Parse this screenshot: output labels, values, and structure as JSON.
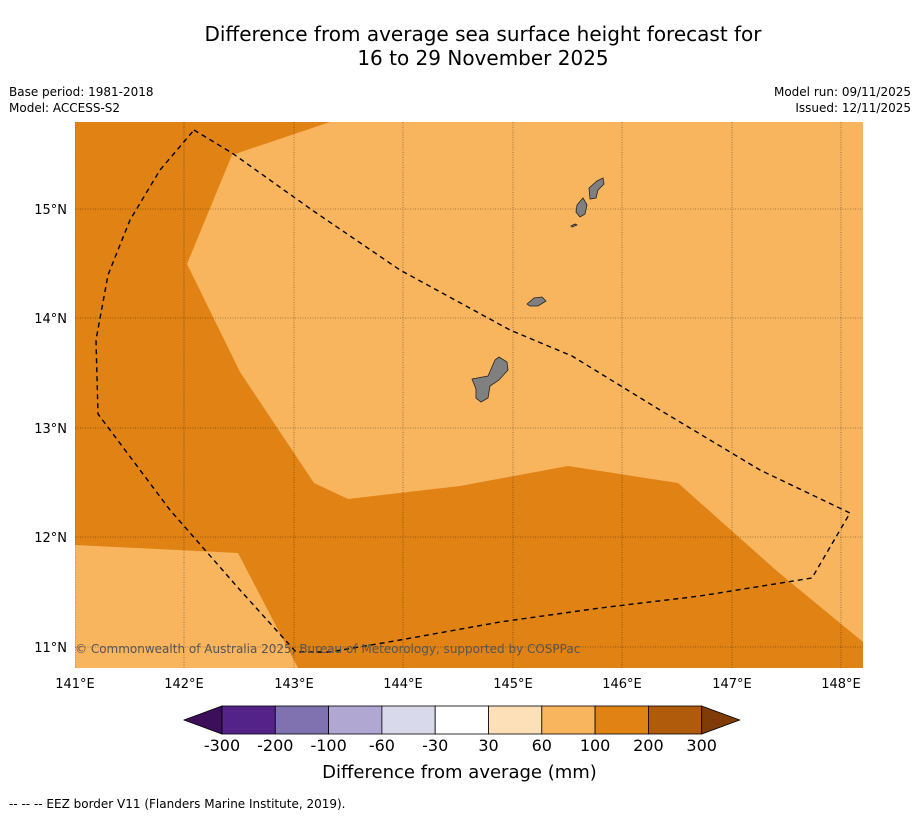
{
  "title_line1": "Difference from average sea surface height forecast for",
  "title_line2": "16 to 29 November 2025",
  "base_period": "Base period: 1981-2018",
  "model": "Model: ACCESS-S2",
  "model_run": "Model run: 09/11/2025",
  "issued": "Issued: 12/11/2025",
  "copyright": "© Commonwealth of Australia 2025, Bureau of Meteorology, supported by COSPPac",
  "lon_labels": [
    "141°E",
    "142°E",
    "143°E",
    "144°E",
    "145°E",
    "146°E",
    "147°E",
    "148°E"
  ],
  "lat_labels": [
    "15°N",
    "14°N",
    "13°N",
    "12°N",
    "11°N"
  ],
  "colorbar": {
    "title": "Difference from average (mm)",
    "tick_labels": [
      "-300",
      "-200",
      "-100",
      "-60",
      "-30",
      "30",
      "60",
      "100",
      "200",
      "300"
    ],
    "colors": [
      "#3b0f59",
      "#54238a",
      "#8072b0",
      "#b0a8d2",
      "#d9d9ec",
      "#ffffff",
      "#fde0b8",
      "#f9b55e",
      "#e08214",
      "#b05a0b",
      "#7f3b08"
    ]
  },
  "fill_colors": {
    "light_orange": "#f9b55e",
    "dark_orange": "#e08214",
    "land": "#808080"
  },
  "legend_note": "--  --  -- EEZ border V11 (Flanders Marine Institute, 2019)."
}
